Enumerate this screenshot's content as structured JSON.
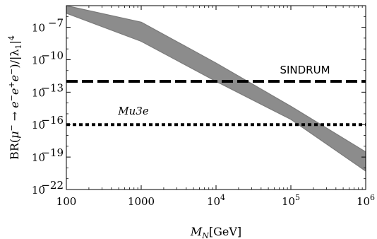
{
  "chart_data": {
    "type": "scatter",
    "x_scale": "log",
    "y_scale": "log",
    "xlim": [
      100,
      1000000
    ],
    "ylim": [
      1e-22,
      1e-05
    ],
    "xlabel": {
      "main": "M",
      "sub": "N",
      "unit": "[GeV]"
    },
    "ylabel": {
      "prefix": "BR(",
      "mu": "μ",
      "sup_minus": "−",
      "arrow": " → ",
      "e1": "e",
      "e2": "e",
      "e3": "e",
      "sup_plus": "+",
      "suffix": ")/|λ",
      "sub1": "1",
      "bar": "|",
      "pow": "4"
    },
    "x_ticks": [
      {
        "value": 100,
        "label": "100"
      },
      {
        "value": 1000,
        "label": "1000"
      },
      {
        "value": 10000,
        "base": "10",
        "exp": "4"
      },
      {
        "value": 100000,
        "base": "10",
        "exp": "5"
      },
      {
        "value": 1000000,
        "base": "10",
        "exp": "6"
      }
    ],
    "y_ticks": [
      {
        "value": 1e-07,
        "base": "10",
        "exp": "−7"
      },
      {
        "value": 1e-10,
        "base": "10",
        "exp": "−10"
      },
      {
        "value": 1e-13,
        "base": "10",
        "exp": "−13"
      },
      {
        "value": 1e-16,
        "base": "10",
        "exp": "−16"
      },
      {
        "value": 1e-19,
        "base": "10",
        "exp": "−19"
      },
      {
        "value": 1e-22,
        "base": "10",
        "exp": "−22"
      }
    ],
    "band": {
      "color": "#8c8c8c",
      "upper": [
        [
          100,
          1e-05
        ],
        [
          1000,
          3e-07
        ],
        [
          10000,
          5e-11
        ],
        [
          100000,
          5e-15
        ],
        [
          1000000,
          3e-19
        ]
      ],
      "lower": [
        [
          100,
          2e-06
        ],
        [
          1000,
          5e-09
        ],
        [
          10000,
          1e-12
        ],
        [
          100000,
          3e-16
        ],
        [
          1000000,
          5e-21
        ]
      ]
    },
    "reference_lines": [
      {
        "label": "SINDRUM",
        "value": 1e-12,
        "style": "dashed",
        "italic": false
      },
      {
        "label": "Mu3e",
        "value": 1e-16,
        "style": "dotted",
        "italic": true
      }
    ]
  }
}
